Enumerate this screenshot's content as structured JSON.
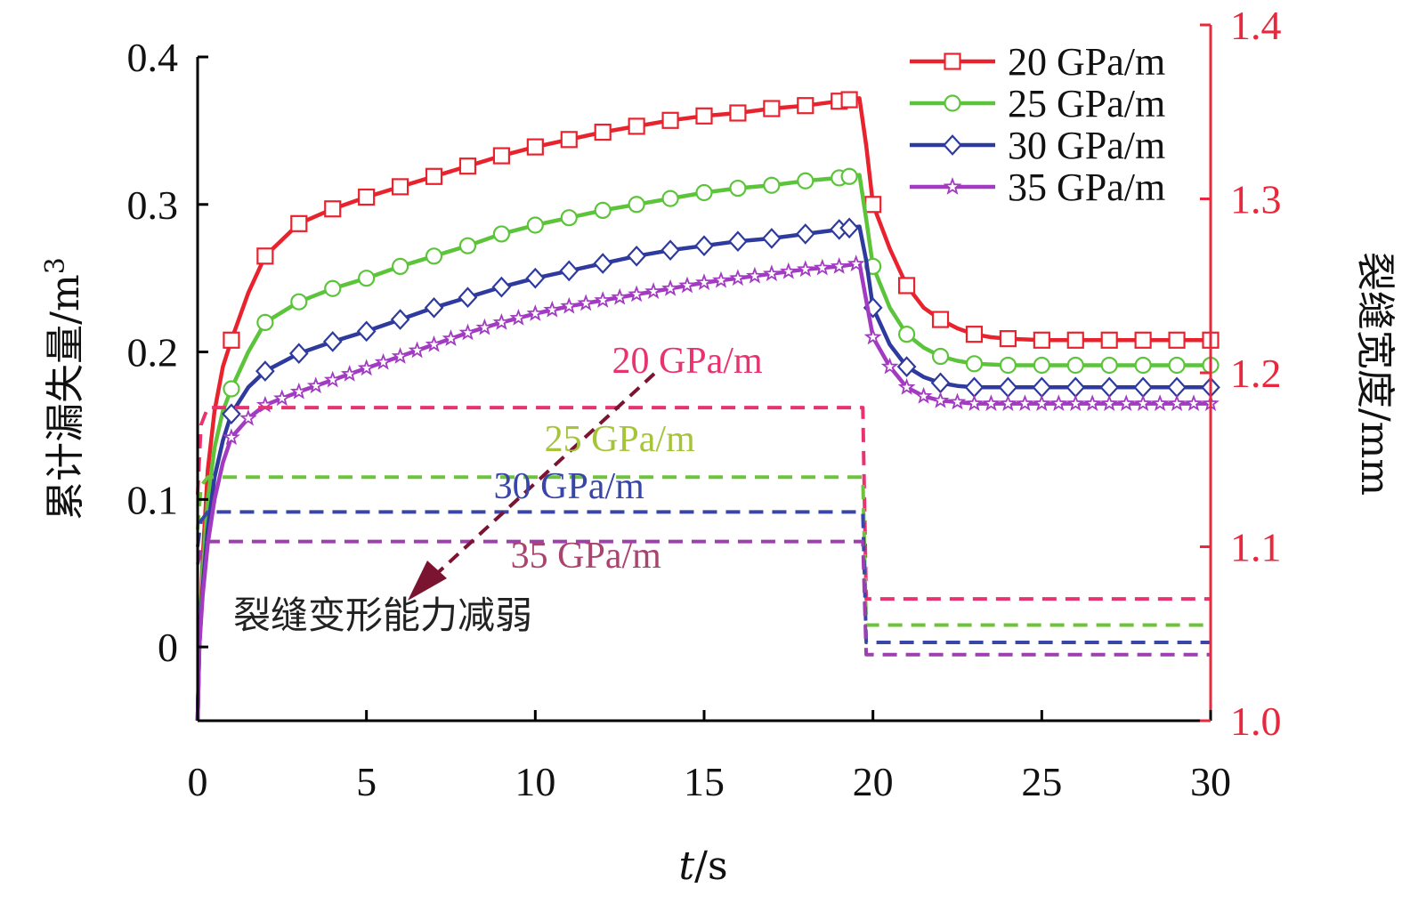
{
  "chart_data": {
    "type": "line",
    "xlabel": "t/s",
    "xlabel_italic": "t",
    "xlabel_unit": "/s",
    "ylabel": "累计漏失量/m³",
    "ylabel_main": "累计漏失量/m",
    "ylabel_sup": "3",
    "y2label": "裂缝宽度/mm",
    "xlim": [
      0,
      30
    ],
    "ylim": [
      -0.05,
      0.4
    ],
    "y2lim": [
      1.0,
      1.4
    ],
    "xticks": [
      "0",
      "5",
      "10",
      "15",
      "20",
      "25",
      "30"
    ],
    "yticks": [
      "0",
      "0.1",
      "0.2",
      "0.3",
      "0.4"
    ],
    "y2ticks": [
      "1.0",
      "1.1",
      "1.2",
      "1.3",
      "1.4"
    ],
    "grid": false,
    "legend_position": "top-right",
    "series": [
      {
        "name": "20 GPa/m",
        "axis": "left",
        "color": "#e8232d",
        "marker": "square",
        "style": "solid",
        "points": [
          [
            0,
            -0.05
          ],
          [
            0.05,
            0.0
          ],
          [
            0.15,
            0.06
          ],
          [
            0.3,
            0.12
          ],
          [
            0.5,
            0.16
          ],
          [
            0.75,
            0.19
          ],
          [
            1,
            0.208
          ],
          [
            1.5,
            0.24
          ],
          [
            2,
            0.265
          ],
          [
            3,
            0.287
          ],
          [
            4,
            0.297
          ],
          [
            5,
            0.305
          ],
          [
            6,
            0.312
          ],
          [
            7,
            0.319
          ],
          [
            8,
            0.326
          ],
          [
            9,
            0.333
          ],
          [
            10,
            0.339
          ],
          [
            11,
            0.344
          ],
          [
            12,
            0.349
          ],
          [
            13,
            0.353
          ],
          [
            14,
            0.357
          ],
          [
            15,
            0.36
          ],
          [
            16,
            0.362
          ],
          [
            17,
            0.365
          ],
          [
            18,
            0.367
          ],
          [
            19,
            0.37
          ],
          [
            19.6,
            0.372
          ],
          [
            19.8,
            0.34
          ],
          [
            20,
            0.3
          ],
          [
            20.5,
            0.27
          ],
          [
            21,
            0.245
          ],
          [
            21.5,
            0.23
          ],
          [
            22,
            0.222
          ],
          [
            22.5,
            0.216
          ],
          [
            23,
            0.212
          ],
          [
            23.5,
            0.21
          ],
          [
            24,
            0.209
          ],
          [
            25,
            0.208
          ],
          [
            26,
            0.208
          ],
          [
            27,
            0.208
          ],
          [
            28,
            0.208
          ],
          [
            29,
            0.208
          ],
          [
            30,
            0.208
          ]
        ]
      },
      {
        "name": "25 GPa/m",
        "axis": "left",
        "color": "#5cc43a",
        "marker": "circle",
        "style": "solid",
        "points": [
          [
            0,
            -0.05
          ],
          [
            0.05,
            0.0
          ],
          [
            0.15,
            0.05
          ],
          [
            0.3,
            0.1
          ],
          [
            0.5,
            0.135
          ],
          [
            0.75,
            0.16
          ],
          [
            1,
            0.175
          ],
          [
            1.5,
            0.2
          ],
          [
            2,
            0.22
          ],
          [
            3,
            0.234
          ],
          [
            4,
            0.243
          ],
          [
            5,
            0.25
          ],
          [
            6,
            0.258
          ],
          [
            7,
            0.265
          ],
          [
            8,
            0.272
          ],
          [
            9,
            0.28
          ],
          [
            10,
            0.286
          ],
          [
            11,
            0.291
          ],
          [
            12,
            0.296
          ],
          [
            13,
            0.3
          ],
          [
            14,
            0.304
          ],
          [
            15,
            0.308
          ],
          [
            16,
            0.311
          ],
          [
            17,
            0.313
          ],
          [
            18,
            0.316
          ],
          [
            19,
            0.318
          ],
          [
            19.6,
            0.32
          ],
          [
            19.8,
            0.29
          ],
          [
            20,
            0.258
          ],
          [
            20.5,
            0.23
          ],
          [
            21,
            0.212
          ],
          [
            21.5,
            0.203
          ],
          [
            22,
            0.197
          ],
          [
            22.5,
            0.194
          ],
          [
            23,
            0.192
          ],
          [
            24,
            0.191
          ],
          [
            25,
            0.191
          ],
          [
            26,
            0.191
          ],
          [
            27,
            0.191
          ],
          [
            28,
            0.191
          ],
          [
            29,
            0.191
          ],
          [
            30,
            0.191
          ]
        ]
      },
      {
        "name": "30 GPa/m",
        "axis": "left",
        "color": "#2e3a9e",
        "marker": "diamond",
        "style": "solid",
        "points": [
          [
            0,
            -0.05
          ],
          [
            0.05,
            0.0
          ],
          [
            0.15,
            0.04
          ],
          [
            0.3,
            0.08
          ],
          [
            0.5,
            0.115
          ],
          [
            0.75,
            0.14
          ],
          [
            1,
            0.158
          ],
          [
            1.5,
            0.176
          ],
          [
            2,
            0.187
          ],
          [
            3,
            0.199
          ],
          [
            4,
            0.207
          ],
          [
            5,
            0.214
          ],
          [
            6,
            0.222
          ],
          [
            7,
            0.23
          ],
          [
            8,
            0.237
          ],
          [
            9,
            0.244
          ],
          [
            10,
            0.25
          ],
          [
            11,
            0.255
          ],
          [
            12,
            0.26
          ],
          [
            13,
            0.265
          ],
          [
            14,
            0.269
          ],
          [
            15,
            0.272
          ],
          [
            16,
            0.275
          ],
          [
            17,
            0.277
          ],
          [
            18,
            0.28
          ],
          [
            19,
            0.283
          ],
          [
            19.6,
            0.285
          ],
          [
            19.8,
            0.262
          ],
          [
            20,
            0.23
          ],
          [
            20.5,
            0.205
          ],
          [
            21,
            0.19
          ],
          [
            21.5,
            0.183
          ],
          [
            22,
            0.179
          ],
          [
            22.5,
            0.177
          ],
          [
            23,
            0.176
          ],
          [
            24,
            0.176
          ],
          [
            25,
            0.176
          ],
          [
            26,
            0.176
          ],
          [
            27,
            0.176
          ],
          [
            28,
            0.176
          ],
          [
            29,
            0.176
          ],
          [
            30,
            0.176
          ]
        ]
      },
      {
        "name": "35 GPa/m",
        "axis": "left",
        "color": "#a23bc2",
        "marker": "star",
        "style": "solid",
        "points": [
          [
            0,
            -0.05
          ],
          [
            0.05,
            0.0
          ],
          [
            0.15,
            0.035
          ],
          [
            0.3,
            0.07
          ],
          [
            0.5,
            0.1
          ],
          [
            0.75,
            0.125
          ],
          [
            1,
            0.142
          ],
          [
            1.5,
            0.155
          ],
          [
            2,
            0.164
          ],
          [
            3,
            0.173
          ],
          [
            4,
            0.181
          ],
          [
            5,
            0.189
          ],
          [
            6,
            0.197
          ],
          [
            7,
            0.205
          ],
          [
            8,
            0.213
          ],
          [
            9,
            0.22
          ],
          [
            10,
            0.226
          ],
          [
            11,
            0.231
          ],
          [
            12,
            0.235
          ],
          [
            13,
            0.239
          ],
          [
            14,
            0.243
          ],
          [
            15,
            0.247
          ],
          [
            16,
            0.25
          ],
          [
            17,
            0.253
          ],
          [
            18,
            0.256
          ],
          [
            19,
            0.258
          ],
          [
            19.6,
            0.26
          ],
          [
            19.8,
            0.235
          ],
          [
            20,
            0.21
          ],
          [
            20.5,
            0.19
          ],
          [
            21,
            0.176
          ],
          [
            21.5,
            0.17
          ],
          [
            22,
            0.167
          ],
          [
            22.5,
            0.166
          ],
          [
            23,
            0.165
          ],
          [
            24,
            0.165
          ],
          [
            25,
            0.165
          ],
          [
            26,
            0.165
          ],
          [
            27,
            0.165
          ],
          [
            28,
            0.165
          ],
          [
            29,
            0.165
          ],
          [
            30,
            0.165
          ]
        ]
      },
      {
        "name": "20 GPa/m",
        "axis": "right",
        "color": "#e8336e",
        "style": "dashed",
        "points": [
          [
            0,
            1.13
          ],
          [
            0.1,
            1.17
          ],
          [
            0.3,
            1.18
          ],
          [
            19.7,
            1.18
          ],
          [
            19.8,
            1.07
          ],
          [
            30,
            1.07
          ]
        ]
      },
      {
        "name": "25 GPa/m",
        "axis": "right",
        "color": "#6cc43a",
        "style": "dashed",
        "points": [
          [
            0,
            1.11
          ],
          [
            0.1,
            1.135
          ],
          [
            0.3,
            1.14
          ],
          [
            19.7,
            1.14
          ],
          [
            19.8,
            1.055
          ],
          [
            30,
            1.055
          ]
        ]
      },
      {
        "name": "30 GPa/m",
        "axis": "right",
        "color": "#3a45a8",
        "style": "dashed",
        "points": [
          [
            0,
            1.1
          ],
          [
            0.1,
            1.115
          ],
          [
            0.3,
            1.12
          ],
          [
            19.7,
            1.12
          ],
          [
            19.8,
            1.045
          ],
          [
            30,
            1.045
          ]
        ]
      },
      {
        "name": "35 GPa/m",
        "axis": "right",
        "color": "#9e3fb0",
        "style": "dashed",
        "points": [
          [
            0,
            1.09
          ],
          [
            0.1,
            1.098
          ],
          [
            0.3,
            1.103
          ],
          [
            19.7,
            1.103
          ],
          [
            19.8,
            1.038
          ],
          [
            30,
            1.038
          ]
        ]
      }
    ],
    "legend": [
      {
        "label": "20 GPa/m",
        "color": "#e8232d",
        "marker": "square"
      },
      {
        "label": "25 GPa/m",
        "color": "#5cc43a",
        "marker": "circle"
      },
      {
        "label": "30 GPa/m",
        "color": "#2e3a9e",
        "marker": "diamond"
      },
      {
        "label": "35 GPa/m",
        "color": "#a23bc2",
        "marker": "star"
      }
    ],
    "annotations": {
      "labels": [
        {
          "text": "20 GPa/m",
          "color": "#e8336e",
          "x": 14.5,
          "y2": 1.2
        },
        {
          "text": "25 GPa/m",
          "color": "#a6c43a",
          "x": 12.5,
          "y2": 1.155
        },
        {
          "text": "30 GPa/m",
          "color": "#3a45a8",
          "x": 11,
          "y2": 1.128
        },
        {
          "text": "35 GPa/m",
          "color": "#a8456e",
          "x": 11.5,
          "y2": 1.088
        }
      ],
      "arrow_text": "裂缝变形能力减弱",
      "arrow_color": "#7a1430"
    }
  }
}
